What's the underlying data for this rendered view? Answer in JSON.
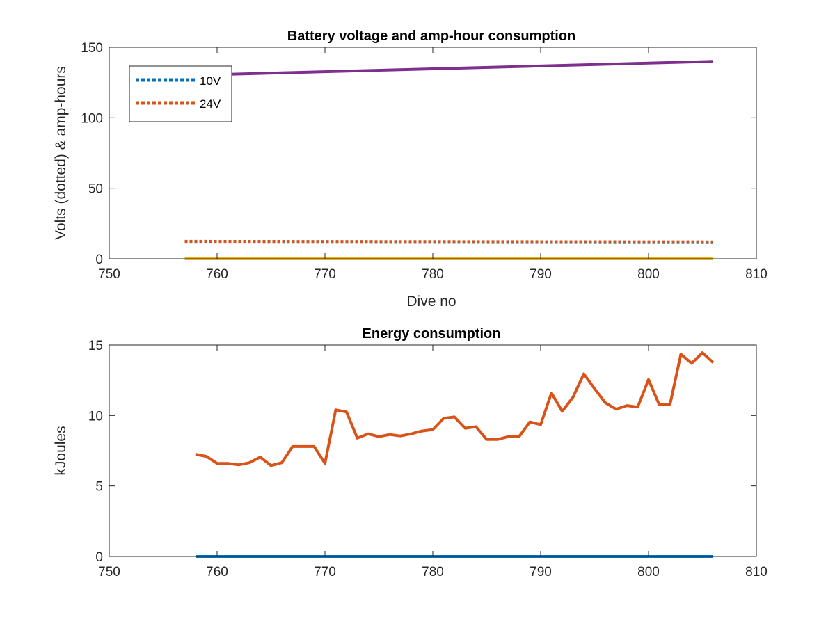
{
  "chart_data": [
    {
      "type": "line",
      "title": "Battery voltage and amp-hour consumption",
      "xlabel": "Dive no",
      "ylabel": "Volts (dotted) & amp-hours",
      "xlim": [
        750,
        810
      ],
      "ylim": [
        0,
        150
      ],
      "xticks": [
        750,
        760,
        770,
        780,
        790,
        800,
        810
      ],
      "yticks": [
        0,
        50,
        100,
        150
      ],
      "grid": false,
      "legend_position": "top-left",
      "series": [
        {
          "name": "10V",
          "style": "dotted",
          "color": "#0072BD",
          "x": [
            757,
            806
          ],
          "y": [
            11.8,
            11.5
          ]
        },
        {
          "name": "24V",
          "style": "dotted",
          "color": "#D95319",
          "x": [
            757,
            806
          ],
          "y": [
            12.4,
            12.0
          ]
        },
        {
          "style": "solid",
          "color": "#EDB120",
          "x": [
            757,
            806
          ],
          "y": [
            0,
            0
          ]
        },
        {
          "style": "solid",
          "color": "#7E2F8E",
          "x": [
            757,
            806
          ],
          "y": [
            130,
            140
          ]
        }
      ]
    },
    {
      "type": "line",
      "title": "Energy consumption",
      "xlabel": "",
      "ylabel": "kJoules",
      "xlim": [
        750,
        810
      ],
      "ylim": [
        0,
        15
      ],
      "xticks": [
        750,
        760,
        770,
        780,
        790,
        800,
        810
      ],
      "yticks": [
        0,
        5,
        10,
        15
      ],
      "grid": false,
      "series": [
        {
          "style": "solid",
          "color": "#D95319",
          "x": [
            758,
            759,
            760,
            761,
            762,
            763,
            764,
            765,
            766,
            767,
            768,
            769,
            770,
            771,
            772,
            773,
            774,
            775,
            776,
            777,
            778,
            779,
            780,
            781,
            782,
            783,
            784,
            785,
            786,
            787,
            788,
            789,
            790,
            791,
            792,
            793,
            794,
            795,
            796,
            797,
            798,
            799,
            800,
            801,
            802,
            803,
            804,
            805,
            806
          ],
          "y": [
            7.25,
            7.1,
            6.6,
            6.6,
            6.5,
            6.65,
            7.05,
            6.45,
            6.65,
            7.8,
            7.8,
            7.8,
            6.6,
            10.4,
            10.25,
            8.4,
            8.7,
            8.5,
            8.65,
            8.55,
            8.7,
            8.9,
            9.0,
            9.8,
            9.9,
            9.1,
            9.2,
            8.3,
            8.3,
            8.5,
            8.5,
            9.55,
            9.35,
            11.6,
            10.3,
            11.3,
            12.95,
            11.9,
            10.9,
            10.45,
            10.7,
            10.6,
            12.55,
            10.75,
            10.8,
            14.35,
            13.7,
            14.45,
            13.75
          ]
        },
        {
          "style": "solid",
          "color": "#0072BD",
          "x": [
            758,
            806
          ],
          "y": [
            0,
            0
          ]
        }
      ]
    }
  ]
}
